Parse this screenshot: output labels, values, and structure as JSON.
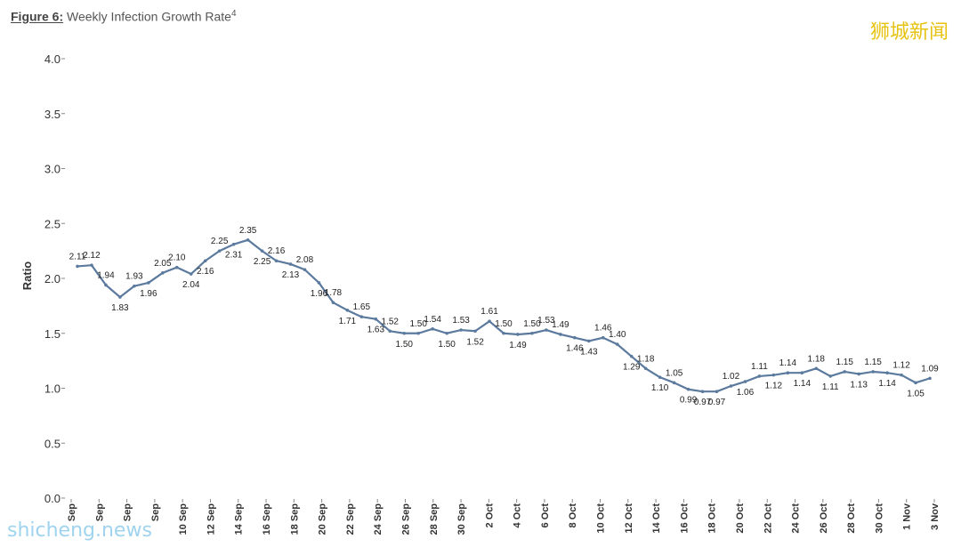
{
  "figure": {
    "number": "Figure 6:",
    "title": "Weekly Infection Growth Rate",
    "footnote": "4"
  },
  "watermarks": {
    "top_right": "狮城新闻",
    "bottom_left": "shicheng.news"
  },
  "colors": {
    "line": "#5b7a9e",
    "text": "#333333",
    "watermark_top": "#e6c312",
    "watermark_bottom": "#9fd3ee"
  },
  "chart_data": {
    "type": "line",
    "ylabel": "Ratio",
    "xlabel": "",
    "ylim": [
      0,
      4.0
    ],
    "yticks": [
      "0.0",
      "0.5",
      "1.0",
      "1.5",
      "2.0",
      "2.5",
      "3.0",
      "3.5",
      "4.0"
    ],
    "grid": false,
    "x_tick_labels": [
      "Sep",
      "Sep",
      "Sep",
      "Sep",
      "10 Sep",
      "12 Sep",
      "14 Sep",
      "16 Sep",
      "18 Sep",
      "20 Sep",
      "22 Sep",
      "24 Sep",
      "26 Sep",
      "28 Sep",
      "30 Sep",
      "2 Oct",
      "4 Oct",
      "6 Oct",
      "8 Oct",
      "10 Oct",
      "12 Oct",
      "14 Oct",
      "16 Oct",
      "18 Oct",
      "20 Oct",
      "22 Oct",
      "24 Oct",
      "26 Oct",
      "28 Oct",
      "30 Oct",
      "1 Nov",
      "3 Nov"
    ],
    "values": [
      2.11,
      2.12,
      1.94,
      1.83,
      1.93,
      1.96,
      2.05,
      2.1,
      2.04,
      2.16,
      2.25,
      2.31,
      2.35,
      2.25,
      2.16,
      2.13,
      2.08,
      1.96,
      1.78,
      1.71,
      1.65,
      1.63,
      1.52,
      1.5,
      1.5,
      1.54,
      1.5,
      1.53,
      1.52,
      1.61,
      1.5,
      1.49,
      1.5,
      1.53,
      1.49,
      1.46,
      1.43,
      1.46,
      1.4,
      1.29,
      1.18,
      1.1,
      1.05,
      0.99,
      0.97,
      0.97,
      1.02,
      1.06,
      1.11,
      1.12,
      1.14,
      1.14,
      1.18,
      1.11,
      1.15,
      1.13,
      1.15,
      1.14,
      1.12,
      1.05,
      1.09
    ],
    "data_labels": [
      "2.11",
      "2.12",
      "1.94",
      "1.83",
      "1.93",
      "1.96",
      "2.05",
      "2.10",
      "2.04",
      "2.16",
      "2.25",
      "2.31",
      "2.35",
      "2.25",
      "2.16",
      "2.13",
      "2.08",
      "1.96",
      "1.78",
      "1.71",
      "1.65",
      "1.63",
      "1.52",
      "1.50",
      "1.50",
      "1.54",
      "1.50",
      "1.53",
      "1.52",
      "1.61",
      "1.50",
      "1.49",
      "1.50",
      "1.53",
      "1.49",
      "1.46",
      "1.43",
      "1.46",
      "1.40",
      "1.29",
      "1.18",
      "1.10",
      "1.05",
      "0.99",
      "0.97",
      "0.97",
      "1.02",
      "1.06",
      "1.11",
      "1.12",
      "1.14",
      "1.14",
      "1.18",
      "1.11",
      "1.15",
      "1.13",
      "1.15",
      "1.14",
      "1.12",
      "1.05",
      "1.09"
    ]
  }
}
